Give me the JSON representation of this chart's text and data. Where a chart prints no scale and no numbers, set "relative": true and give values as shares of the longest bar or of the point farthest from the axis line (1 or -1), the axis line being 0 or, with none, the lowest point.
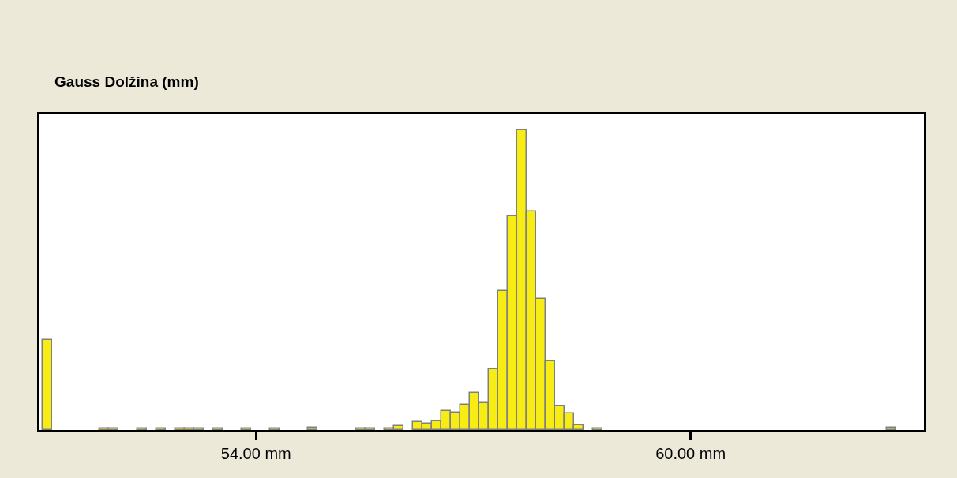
{
  "chart_data": {
    "type": "bar",
    "title": "Gauss Dolžina (mm)",
    "relative": true,
    "color": "#f7ec13",
    "x": [
      51.119,
      51.905,
      52.036,
      52.429,
      52.691,
      52.953,
      53.084,
      53.215,
      53.477,
      53.87,
      54.263,
      54.787,
      55.442,
      55.573,
      55.835,
      55.966,
      56.228,
      56.359,
      56.49,
      56.621,
      56.752,
      56.883,
      57.014,
      57.145,
      57.276,
      57.407,
      57.538,
      57.669,
      57.8,
      57.931,
      58.062,
      58.193,
      58.324,
      58.455,
      58.717,
      62.778
    ],
    "values": [
      0.3,
      0.004,
      0.004,
      0.004,
      0.004,
      0.004,
      0.004,
      0.004,
      0.004,
      0.004,
      0.004,
      0.008,
      0.004,
      0.004,
      0.004,
      0.013,
      0.027,
      0.02,
      0.028,
      0.063,
      0.058,
      0.084,
      0.125,
      0.09,
      0.202,
      0.463,
      0.713,
      1,
      0.729,
      0.437,
      0.228,
      0.08,
      0.054,
      0.016,
      0.004,
      0.008
    ],
    "xlim": [
      51.01,
      63.22
    ],
    "xticks": [
      {
        "value": 54,
        "label": "54.00 mm"
      },
      {
        "value": 60,
        "label": "60.00 mm"
      }
    ],
    "legend": false
  }
}
